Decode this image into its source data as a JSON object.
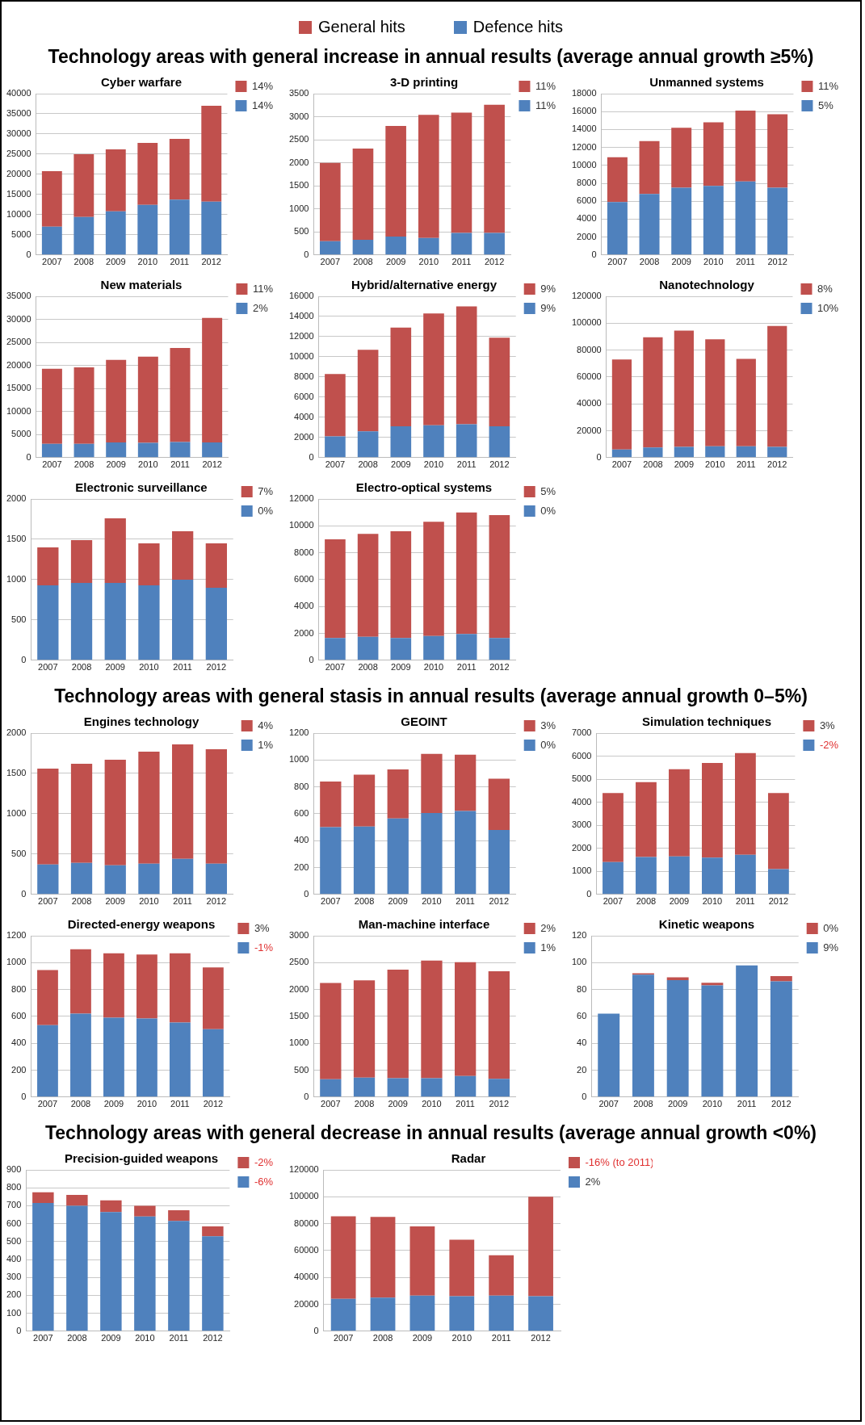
{
  "chart_data": [
    {
      "type": "other",
      "legend": "top",
      "series": [
        {
          "name": "General hits",
          "color": "#c0504d"
        },
        {
          "name": "Defence hits",
          "color": "#4f81bd"
        }
      ],
      "annotations": [
        "Technology areas with general increase in annual results (average annual growth ≥5%)",
        "Technology areas with general stasis in annual results (average annual growth 0–5%)",
        "Technology areas with general decrease in annual results (average annual growth <0%)"
      ]
    },
    {
      "type": "bar",
      "stacked": true,
      "title": "Cyber warfare",
      "categories": [
        "2007",
        "2008",
        "2009",
        "2010",
        "2011",
        "2012"
      ],
      "series": [
        {
          "name": "14%",
          "color": "#4f81bd",
          "values": [
            7000,
            9400,
            10800,
            12400,
            13700,
            13200
          ]
        },
        {
          "name": "14%",
          "color": "#c0504d",
          "values": [
            13800,
            15600,
            15400,
            15400,
            15100,
            23800
          ]
        }
      ],
      "ylim": [
        0,
        40000
      ],
      "yticks": [
        0,
        5000,
        10000,
        15000,
        20000,
        25000,
        30000,
        35000,
        40000
      ],
      "grid": "y",
      "legend": "right"
    },
    {
      "type": "bar",
      "stacked": true,
      "title": "3-D printing",
      "categories": [
        "2007",
        "2008",
        "2009",
        "2010",
        "2011",
        "2012"
      ],
      "series": [
        {
          "name": "11%",
          "color": "#4f81bd",
          "values": [
            300,
            330,
            400,
            370,
            480,
            480
          ]
        },
        {
          "name": "11%",
          "color": "#c0504d",
          "values": [
            1700,
            1980,
            2400,
            2670,
            2610,
            2780
          ]
        }
      ],
      "ylim": [
        0,
        3500
      ],
      "yticks": [
        0,
        500,
        1000,
        1500,
        2000,
        2500,
        3000,
        3500
      ],
      "grid": "y",
      "legend": "right"
    },
    {
      "type": "bar",
      "stacked": true,
      "title": "Unmanned systems",
      "categories": [
        "2007",
        "2008",
        "2009",
        "2010",
        "2011",
        "2012"
      ],
      "series": [
        {
          "name": "5%",
          "color": "#4f81bd",
          "values": [
            5900,
            6800,
            7500,
            7700,
            8200,
            7500
          ]
        },
        {
          "name": "11%",
          "color": "#c0504d",
          "values": [
            5000,
            5900,
            6700,
            7100,
            7900,
            8200
          ]
        }
      ],
      "ylim": [
        0,
        18000
      ],
      "yticks": [
        0,
        2000,
        4000,
        6000,
        8000,
        10000,
        12000,
        14000,
        16000,
        18000
      ],
      "grid": "y",
      "legend": "right"
    },
    {
      "type": "bar",
      "stacked": true,
      "title": "New materials",
      "categories": [
        "2007",
        "2008",
        "2009",
        "2010",
        "2011",
        "2012"
      ],
      "series": [
        {
          "name": "2%",
          "color": "#4f81bd",
          "values": [
            3000,
            3000,
            3300,
            3200,
            3400,
            3300
          ]
        },
        {
          "name": "11%",
          "color": "#c0504d",
          "values": [
            16300,
            16600,
            17900,
            18700,
            20400,
            27000
          ]
        }
      ],
      "ylim": [
        0,
        35000
      ],
      "yticks": [
        0,
        5000,
        10000,
        15000,
        20000,
        25000,
        30000,
        35000
      ],
      "grid": "y",
      "legend": "right"
    },
    {
      "type": "bar",
      "stacked": true,
      "title": "Hybrid/alternative energy",
      "categories": [
        "2007",
        "2008",
        "2009",
        "2010",
        "2011",
        "2012"
      ],
      "series": [
        {
          "name": "9%",
          "color": "#4f81bd",
          "values": [
            2100,
            2600,
            3100,
            3200,
            3300,
            3100
          ]
        },
        {
          "name": "9%",
          "color": "#c0504d",
          "values": [
            6200,
            8100,
            9800,
            11100,
            11700,
            8800
          ]
        }
      ],
      "ylim": [
        0,
        16000
      ],
      "yticks": [
        0,
        2000,
        4000,
        6000,
        8000,
        10000,
        12000,
        14000,
        16000
      ],
      "grid": "y",
      "legend": "right"
    },
    {
      "type": "bar",
      "stacked": true,
      "title": "Nanotechnology",
      "categories": [
        "2007",
        "2008",
        "2009",
        "2010",
        "2011",
        "2012"
      ],
      "series": [
        {
          "name": "10%",
          "color": "#4f81bd",
          "values": [
            6000,
            7500,
            8000,
            8500,
            8500,
            8000
          ]
        },
        {
          "name": "8%",
          "color": "#c0504d",
          "values": [
            67000,
            82000,
            86500,
            79500,
            65000,
            90000
          ]
        }
      ],
      "ylim": [
        0,
        120000
      ],
      "yticks": [
        0,
        20000,
        40000,
        60000,
        80000,
        100000,
        120000
      ],
      "grid": "y",
      "legend": "right"
    },
    {
      "type": "bar",
      "stacked": true,
      "title": "Electronic surveillance",
      "categories": [
        "2007",
        "2008",
        "2009",
        "2010",
        "2011",
        "2012"
      ],
      "series": [
        {
          "name": "0%",
          "color": "#4f81bd",
          "values": [
            930,
            960,
            960,
            930,
            1000,
            900
          ]
        },
        {
          "name": "7%",
          "color": "#c0504d",
          "values": [
            470,
            530,
            800,
            520,
            600,
            550
          ]
        }
      ],
      "ylim": [
        0,
        2000
      ],
      "yticks": [
        0,
        500,
        1000,
        1500,
        2000
      ],
      "grid": "y",
      "legend": "right"
    },
    {
      "type": "bar",
      "stacked": true,
      "title": "Electro-optical systems",
      "categories": [
        "2007",
        "2008",
        "2009",
        "2010",
        "2011",
        "2012"
      ],
      "series": [
        {
          "name": "0%",
          "color": "#4f81bd",
          "values": [
            1650,
            1750,
            1650,
            1800,
            1950,
            1650
          ]
        },
        {
          "name": "5%",
          "color": "#c0504d",
          "values": [
            7350,
            7650,
            7950,
            8500,
            9050,
            9150
          ]
        }
      ],
      "ylim": [
        0,
        12000
      ],
      "yticks": [
        0,
        2000,
        4000,
        6000,
        8000,
        10000,
        12000
      ],
      "grid": "y",
      "legend": "right"
    },
    {
      "type": "bar",
      "stacked": true,
      "title": "Engines technology",
      "categories": [
        "2007",
        "2008",
        "2009",
        "2010",
        "2011",
        "2012"
      ],
      "series": [
        {
          "name": "1%",
          "color": "#4f81bd",
          "values": [
            370,
            390,
            360,
            380,
            440,
            380
          ]
        },
        {
          "name": "4%",
          "color": "#c0504d",
          "values": [
            1190,
            1230,
            1310,
            1390,
            1420,
            1420
          ]
        }
      ],
      "ylim": [
        0,
        2000
      ],
      "yticks": [
        0,
        500,
        1000,
        1500,
        2000
      ],
      "grid": "y",
      "legend": "right"
    },
    {
      "type": "bar",
      "stacked": true,
      "title": "GEOINT",
      "categories": [
        "2007",
        "2008",
        "2009",
        "2010",
        "2011",
        "2012"
      ],
      "series": [
        {
          "name": "0%",
          "color": "#4f81bd",
          "values": [
            500,
            505,
            565,
            605,
            620,
            480
          ]
        },
        {
          "name": "3%",
          "color": "#c0504d",
          "values": [
            340,
            385,
            365,
            440,
            420,
            380
          ]
        }
      ],
      "ylim": [
        0,
        1200
      ],
      "yticks": [
        0,
        200,
        400,
        600,
        800,
        1000,
        1200
      ],
      "grid": "y",
      "legend": "right"
    },
    {
      "type": "bar",
      "stacked": true,
      "title": "Simulation techniques",
      "categories": [
        "2007",
        "2008",
        "2009",
        "2010",
        "2011",
        "2012"
      ],
      "series": [
        {
          "name": "-2%",
          "color": "#4f81bd",
          "values": [
            1400,
            1620,
            1650,
            1600,
            1720,
            1100
          ]
        },
        {
          "name": "3%",
          "color": "#c0504d",
          "values": [
            3000,
            3250,
            3780,
            4100,
            4410,
            3300
          ]
        }
      ],
      "ylim": [
        0,
        7000
      ],
      "yticks": [
        0,
        1000,
        2000,
        3000,
        4000,
        5000,
        6000,
        7000
      ],
      "grid": "y",
      "legend": "right"
    },
    {
      "type": "bar",
      "stacked": true,
      "title": "Directed-energy weapons",
      "categories": [
        "2007",
        "2008",
        "2009",
        "2010",
        "2011",
        "2012"
      ],
      "series": [
        {
          "name": "-1%",
          "color": "#4f81bd",
          "values": [
            535,
            620,
            590,
            585,
            555,
            505
          ]
        },
        {
          "name": "3%",
          "color": "#c0504d",
          "values": [
            410,
            480,
            480,
            475,
            515,
            460
          ]
        }
      ],
      "ylim": [
        0,
        1200
      ],
      "yticks": [
        0,
        200,
        400,
        600,
        800,
        1000,
        1200
      ],
      "grid": "y",
      "legend": "right"
    },
    {
      "type": "bar",
      "stacked": true,
      "title": "Man-machine interface",
      "categories": [
        "2007",
        "2008",
        "2009",
        "2010",
        "2011",
        "2012"
      ],
      "series": [
        {
          "name": "1%",
          "color": "#4f81bd",
          "values": [
            330,
            360,
            350,
            350,
            390,
            340
          ]
        },
        {
          "name": "2%",
          "color": "#c0504d",
          "values": [
            1790,
            1810,
            2020,
            2190,
            2120,
            2000
          ]
        }
      ],
      "ylim": [
        0,
        3000
      ],
      "yticks": [
        0,
        500,
        1000,
        1500,
        2000,
        2500,
        3000
      ],
      "grid": "y",
      "legend": "right"
    },
    {
      "type": "bar",
      "stacked": true,
      "title": "Kinetic weapons",
      "categories": [
        "2007",
        "2008",
        "2009",
        "2010",
        "2011",
        "2012"
      ],
      "series": [
        {
          "name": "9%",
          "color": "#4f81bd",
          "values": [
            62,
            91,
            87,
            83,
            98,
            86
          ]
        },
        {
          "name": "0%",
          "color": "#c0504d",
          "values": [
            0,
            1,
            2,
            2,
            0,
            4
          ]
        }
      ],
      "ylim": [
        0,
        120
      ],
      "yticks": [
        0,
        20,
        40,
        60,
        80,
        100,
        120
      ],
      "grid": "y",
      "legend": "right"
    },
    {
      "type": "bar",
      "stacked": true,
      "title": "Precision-guided weapons",
      "categories": [
        "2007",
        "2008",
        "2009",
        "2010",
        "2011",
        "2012"
      ],
      "series": [
        {
          "name": "-6%",
          "color": "#4f81bd",
          "values": [
            715,
            700,
            665,
            640,
            615,
            530
          ]
        },
        {
          "name": "-2%",
          "color": "#c0504d",
          "values": [
            60,
            60,
            65,
            60,
            60,
            55
          ]
        }
      ],
      "ylim": [
        0,
        900
      ],
      "yticks": [
        0,
        100,
        200,
        300,
        400,
        500,
        600,
        700,
        800,
        900
      ],
      "grid": "y",
      "legend": "right"
    },
    {
      "type": "bar",
      "stacked": true,
      "title": "Radar",
      "categories": [
        "2007",
        "2008",
        "2009",
        "2010",
        "2011",
        "2012"
      ],
      "series": [
        {
          "name": "2%",
          "color": "#4f81bd",
          "values": [
            24000,
            25000,
            26500,
            26000,
            26500,
            26000
          ]
        },
        {
          "name": "-16% (to 2011)",
          "color": "#c0504d",
          "values": [
            61500,
            60000,
            51500,
            42000,
            30000,
            74000
          ]
        }
      ],
      "ylim": [
        0,
        120000
      ],
      "yticks": [
        0,
        20000,
        40000,
        60000,
        80000,
        100000,
        120000
      ],
      "grid": "y",
      "legend": "right"
    }
  ]
}
